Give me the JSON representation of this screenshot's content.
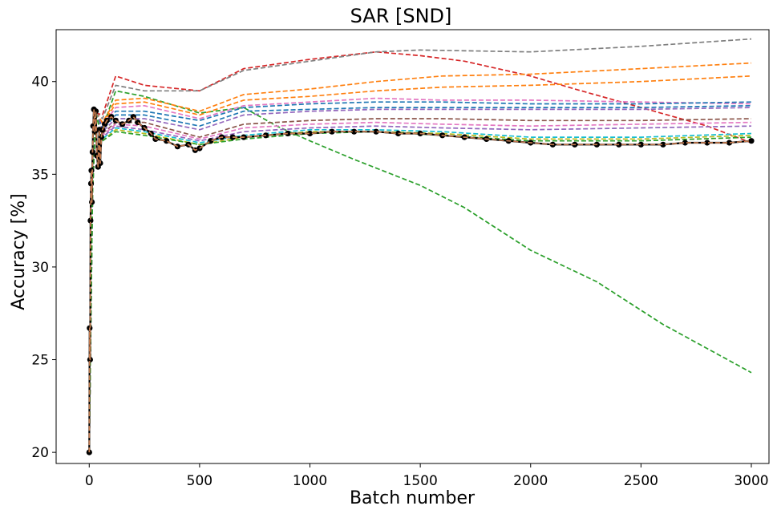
{
  "chart_data": {
    "type": "line",
    "title": "SAR [SND]",
    "xlabel": "Batch number",
    "ylabel": "Accuracy [%]",
    "xlim": [
      -150,
      3080
    ],
    "ylim": [
      19.4,
      42.8
    ],
    "xticks": [
      0,
      500,
      1000,
      1500,
      2000,
      2500,
      3000
    ],
    "yticks": [
      20,
      25,
      30,
      35,
      40
    ],
    "grid": false,
    "legend": "none",
    "series": [
      {
        "color": "#2ca02c",
        "dash": true,
        "x": [
          0,
          5,
          15,
          30,
          60,
          120,
          250,
          500,
          700,
          850,
          1000,
          1200,
          1500,
          1700,
          2000,
          2300,
          2600,
          3000
        ],
        "y": [
          20,
          25,
          34,
          38.3,
          37.5,
          39.5,
          39.2,
          38.3,
          38.6,
          37.6,
          36.8,
          35.8,
          34.4,
          33.2,
          30.9,
          29.2,
          26.9,
          24.3
        ]
      },
      {
        "color": "#d62728",
        "dash": true,
        "x": [
          0,
          5,
          15,
          30,
          60,
          120,
          250,
          500,
          700,
          1000,
          1300,
          1500,
          1700,
          2000,
          2200,
          2500,
          2800,
          3000
        ],
        "y": [
          20,
          25,
          34,
          38.3,
          38.2,
          40.3,
          39.8,
          39.5,
          40.7,
          41.2,
          41.6,
          41.4,
          41.1,
          40.3,
          39.6,
          38.6,
          37.6,
          36.7
        ]
      },
      {
        "color": "#7f7f7f",
        "dash": true,
        "x": [
          0,
          5,
          15,
          30,
          60,
          120,
          250,
          500,
          700,
          1000,
          1300,
          1500,
          2000,
          2500,
          3000
        ],
        "y": [
          20,
          25,
          34,
          38.3,
          38.0,
          39.8,
          39.5,
          39.5,
          40.6,
          41.1,
          41.6,
          41.7,
          41.6,
          41.9,
          42.3
        ]
      },
      {
        "color": "#ff7f0e",
        "dash": true,
        "x": [
          0,
          5,
          15,
          30,
          60,
          120,
          250,
          500,
          700,
          1000,
          1300,
          1600,
          2000,
          2500,
          3000
        ],
        "y": [
          20,
          25,
          34,
          38.3,
          37.8,
          39.0,
          39.1,
          38.4,
          39.3,
          39.6,
          40.0,
          40.3,
          40.4,
          40.7,
          41.0
        ]
      },
      {
        "color": "#ff7f0e",
        "dash": true,
        "x": [
          0,
          5,
          15,
          30,
          60,
          120,
          250,
          500,
          700,
          1000,
          1300,
          1600,
          2000,
          2500,
          3000
        ],
        "y": [
          20,
          25,
          34,
          38.3,
          37.7,
          38.8,
          38.9,
          38.2,
          39.0,
          39.2,
          39.5,
          39.7,
          39.8,
          40.0,
          40.3
        ]
      },
      {
        "color": "#e377c2",
        "dash": true,
        "x": [
          0,
          5,
          15,
          30,
          60,
          120,
          250,
          500,
          700,
          1000,
          1300,
          1600,
          2000,
          2500,
          3000
        ],
        "y": [
          20,
          25,
          34,
          38.3,
          37.6,
          38.6,
          38.7,
          38.0,
          38.7,
          38.9,
          39.1,
          39.0,
          39.0,
          38.9,
          38.8
        ]
      },
      {
        "color": "#1f77b4",
        "dash": true,
        "x": [
          0,
          5,
          15,
          30,
          60,
          120,
          250,
          500,
          700,
          1000,
          1300,
          1600,
          2000,
          2500,
          3000
        ],
        "y": [
          20,
          25,
          34,
          38.3,
          37.5,
          38.4,
          38.4,
          37.9,
          38.6,
          38.8,
          38.9,
          38.9,
          38.8,
          38.8,
          38.9
        ]
      },
      {
        "color": "#1f77b4",
        "dash": true,
        "x": [
          0,
          5,
          15,
          30,
          60,
          120,
          250,
          500,
          700,
          1000,
          1300,
          1600,
          2000,
          2500,
          3000
        ],
        "y": [
          20,
          25,
          34,
          38.3,
          37.4,
          38.2,
          38.2,
          37.6,
          38.4,
          38.5,
          38.6,
          38.6,
          38.6,
          38.6,
          38.7
        ]
      },
      {
        "color": "#9467bd",
        "dash": true,
        "x": [
          0,
          5,
          15,
          30,
          60,
          120,
          250,
          500,
          700,
          1000,
          1300,
          1600,
          2000,
          2500,
          3000
        ],
        "y": [
          20,
          25,
          34,
          38.3,
          37.3,
          38.0,
          38.0,
          37.4,
          38.2,
          38.4,
          38.5,
          38.5,
          38.5,
          38.5,
          38.6
        ]
      },
      {
        "color": "#8c564b",
        "dash": true,
        "x": [
          0,
          5,
          15,
          30,
          60,
          120,
          250,
          500,
          700,
          1000,
          1300,
          1600,
          2000,
          2500,
          3000
        ],
        "y": [
          20,
          25,
          34,
          38.3,
          37.2,
          37.8,
          37.8,
          37.0,
          37.7,
          37.9,
          38.0,
          38.0,
          37.9,
          37.9,
          38.0
        ]
      },
      {
        "color": "#e377c2",
        "dash": true,
        "x": [
          0,
          5,
          15,
          30,
          60,
          120,
          250,
          500,
          700,
          1000,
          1300,
          1600,
          2000,
          2500,
          3000
        ],
        "y": [
          20,
          25,
          34,
          38.3,
          37.1,
          37.7,
          37.6,
          36.9,
          37.5,
          37.7,
          37.8,
          37.7,
          37.6,
          37.7,
          37.8
        ]
      },
      {
        "color": "#9467bd",
        "dash": true,
        "x": [
          0,
          5,
          15,
          30,
          60,
          120,
          250,
          500,
          700,
          1000,
          1300,
          1600,
          2000,
          2500,
          3000
        ],
        "y": [
          20,
          25,
          34,
          38.3,
          37.0,
          37.6,
          37.4,
          36.8,
          37.3,
          37.5,
          37.6,
          37.5,
          37.4,
          37.5,
          37.6
        ]
      },
      {
        "color": "#17becf",
        "dash": true,
        "x": [
          0,
          5,
          15,
          30,
          60,
          120,
          250,
          500,
          700,
          1000,
          1300,
          1600,
          2000,
          2500,
          3000
        ],
        "y": [
          20,
          25,
          34,
          38.3,
          36.9,
          37.5,
          37.3,
          36.7,
          37.1,
          37.4,
          37.4,
          37.3,
          37.0,
          37.0,
          37.2
        ]
      },
      {
        "color": "#bcbd22",
        "dash": true,
        "x": [
          0,
          5,
          15,
          30,
          60,
          120,
          250,
          500,
          700,
          1000,
          1300,
          1600,
          2000,
          2500,
          3000
        ],
        "y": [
          20,
          25,
          34,
          38.3,
          36.8,
          37.4,
          37.2,
          36.6,
          37.0,
          37.3,
          37.3,
          37.2,
          36.9,
          36.9,
          37.1
        ]
      },
      {
        "color": "#2ca02c",
        "dash": true,
        "x": [
          0,
          5,
          15,
          30,
          60,
          120,
          250,
          500,
          700,
          1000,
          1300,
          1600,
          2000,
          2500,
          3000
        ],
        "y": [
          20,
          25,
          34,
          38.3,
          36.8,
          37.3,
          37.1,
          36.6,
          36.9,
          37.2,
          37.3,
          37.1,
          36.8,
          36.8,
          37.0
        ]
      },
      {
        "color": "#000000",
        "dash": false,
        "markers": true,
        "x": [
          0,
          2,
          4,
          6,
          8,
          10,
          12,
          15,
          18,
          21,
          25,
          30,
          35,
          40,
          45,
          50,
          55,
          60,
          70,
          80,
          100,
          120,
          150,
          180,
          200,
          220,
          250,
          280,
          300,
          350,
          400,
          450,
          480,
          500,
          550,
          600,
          650,
          700,
          800,
          900,
          1000,
          1100,
          1200,
          1300,
          1400,
          1500,
          1600,
          1700,
          1800,
          1900,
          2000,
          2100,
          2200,
          2300,
          2400,
          2500,
          2600,
          2700,
          2800,
          2900,
          3000
        ],
        "y": [
          20,
          26.7,
          25,
          32.5,
          34.5,
          35.2,
          33.5,
          36.2,
          37.6,
          38.5,
          37.3,
          38.4,
          36.0,
          35.4,
          37.4,
          35.6,
          37.0,
          37.4,
          37.7,
          37.9,
          38.1,
          37.9,
          37.7,
          37.9,
          38.1,
          37.8,
          37.5,
          37.2,
          36.9,
          36.8,
          36.5,
          36.6,
          36.3,
          36.4,
          36.8,
          37.0,
          37.0,
          37.0,
          37.1,
          37.2,
          37.2,
          37.3,
          37.3,
          37.3,
          37.2,
          37.2,
          37.1,
          37.0,
          36.9,
          36.8,
          36.7,
          36.6,
          36.6,
          36.6,
          36.6,
          36.6,
          36.6,
          36.7,
          36.7,
          36.7,
          36.8
        ]
      },
      {
        "color": "#c47a4e",
        "dash": true,
        "x": [
          0,
          2,
          4,
          6,
          8,
          10,
          12,
          15,
          18,
          21,
          25,
          30,
          35,
          40,
          45,
          50,
          55,
          60,
          70,
          80,
          100,
          120,
          150,
          180,
          200,
          220,
          250,
          280,
          300,
          350,
          400,
          450,
          480,
          500,
          550,
          600,
          650,
          700,
          800,
          900,
          1000,
          1100,
          1200,
          1300,
          1400,
          1500,
          1600,
          1700,
          1800,
          1900,
          2000,
          2100,
          2200,
          2300,
          2400,
          2500,
          2600,
          2700,
          2800,
          2900,
          3000
        ],
        "y": [
          20,
          26.7,
          25,
          32.5,
          34.5,
          35.2,
          33.5,
          36.2,
          37.6,
          38.5,
          37.3,
          38.4,
          36.0,
          35.4,
          37.4,
          35.6,
          37.0,
          37.4,
          37.7,
          37.9,
          38.1,
          37.9,
          37.7,
          37.9,
          38.1,
          37.8,
          37.5,
          37.2,
          36.9,
          36.8,
          36.5,
          36.6,
          36.3,
          36.4,
          36.8,
          37.0,
          37.0,
          37.0,
          37.1,
          37.2,
          37.2,
          37.3,
          37.3,
          37.3,
          37.2,
          37.2,
          37.1,
          37.0,
          36.9,
          36.8,
          36.7,
          36.6,
          36.6,
          36.6,
          36.6,
          36.6,
          36.6,
          36.7,
          36.7,
          36.7,
          36.8
        ]
      }
    ]
  }
}
